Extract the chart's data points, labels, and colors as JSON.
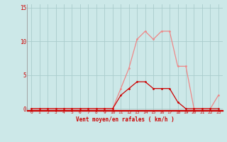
{
  "x": [
    0,
    1,
    2,
    3,
    4,
    5,
    6,
    7,
    8,
    9,
    10,
    11,
    12,
    13,
    14,
    15,
    16,
    17,
    18,
    19,
    20,
    21,
    22,
    23
  ],
  "y_moyen": [
    0,
    0,
    0,
    0,
    0,
    0,
    0,
    0,
    0,
    0,
    0,
    2,
    3,
    4,
    4,
    3,
    3,
    3,
    1,
    0,
    0,
    0,
    0,
    0
  ],
  "y_rafales": [
    0,
    0,
    0,
    0,
    0,
    0,
    0,
    0,
    0,
    0,
    0,
    3,
    6,
    10.3,
    11.5,
    10.3,
    11.5,
    11.5,
    6.3,
    6.3,
    0,
    0,
    0,
    2
  ],
  "xlabel": "Vent moyen/en rafales ( km/h )",
  "xlim": [
    -0.5,
    23.5
  ],
  "ylim": [
    -0.3,
    15.5
  ],
  "ytick_vals": [
    0,
    5,
    10,
    15
  ],
  "xtick_vals": [
    0,
    1,
    2,
    3,
    4,
    5,
    6,
    7,
    8,
    9,
    10,
    11,
    12,
    13,
    14,
    15,
    16,
    17,
    18,
    19,
    20,
    21,
    22,
    23
  ],
  "bg_color": "#cce8e8",
  "grid_color": "#aacccc",
  "line_color_moyen": "#cc0000",
  "line_color_rafales": "#ee8888",
  "marker_color_moyen": "#cc0000",
  "marker_color_rafales": "#ee8888",
  "label_color": "#cc0000"
}
